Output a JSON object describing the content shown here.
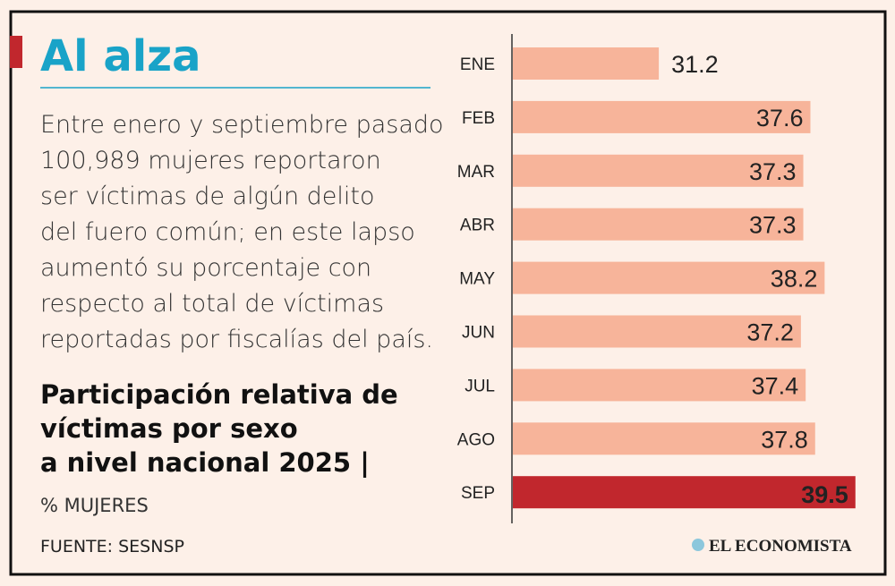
{
  "headline": "Al alza",
  "body": [
    "Entre enero y septiembre pasado",
    "100,989 mujeres reportaron",
    "ser víctimas de algún delito",
    "del fuero común; en este lapso",
    "aumentó su porcentaje con",
    "respecto al total de víctimas",
    "reportadas por fiscalías del país."
  ],
  "chart_data": {
    "type": "bar",
    "orientation": "horizontal",
    "title": [
      "Participación relativa de",
      "víctimas por sexo",
      "a nivel nacional 2025 |"
    ],
    "subtitle": "% MUJERES",
    "categories": [
      "ENE",
      "FEB",
      "MAR",
      "ABR",
      "MAY",
      "JUN",
      "JUL",
      "AGO",
      "SEP"
    ],
    "values": [
      31.2,
      37.6,
      37.3,
      37.3,
      38.2,
      37.2,
      37.4,
      37.8,
      39.5
    ],
    "bar_colors": [
      "#f7b49a",
      "#f7b49a",
      "#f7b49a",
      "#f7b49a",
      "#f7b49a",
      "#f7b49a",
      "#f7b49a",
      "#f7b49a",
      "#c1272d"
    ],
    "xlim": [
      25,
      40
    ]
  },
  "source": "FUENTE: SESNSP",
  "brand": "EL ECONOMISTA"
}
